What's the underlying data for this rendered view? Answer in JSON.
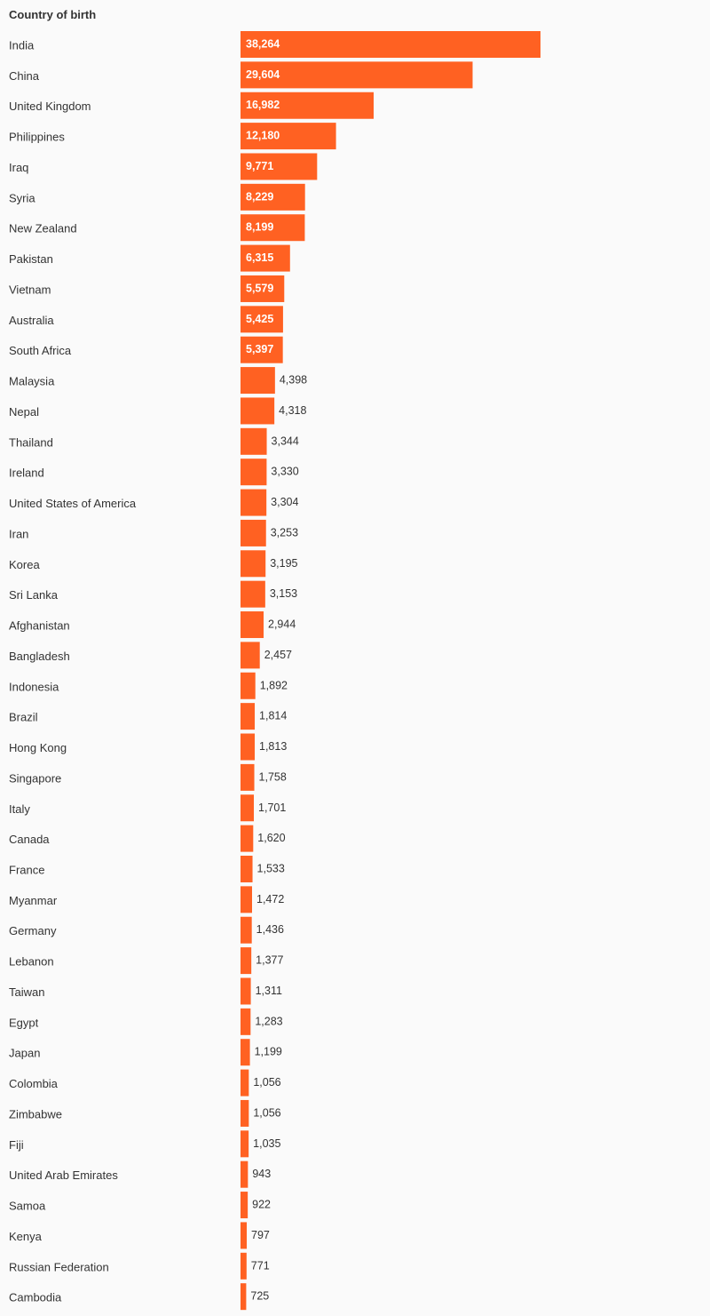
{
  "chart_data": {
    "type": "bar",
    "orientation": "horizontal",
    "title": "Country of birth",
    "xlabel": "",
    "ylabel": "",
    "bar_color": "#ff6122",
    "inside_label_color": "#ffffff",
    "outside_label_color": "#333333",
    "categories": [
      "India",
      "China",
      "United Kingdom",
      "Philippines",
      "Iraq",
      "Syria",
      "New Zealand",
      "Pakistan",
      "Vietnam",
      "Australia",
      "South Africa",
      "Malaysia",
      "Nepal",
      "Thailand",
      "Ireland",
      "United States of America",
      "Iran",
      "Korea",
      "Sri Lanka",
      "Afghanistan",
      "Bangladesh",
      "Indonesia",
      "Brazil",
      "Hong Kong",
      "Singapore",
      "Italy",
      "Canada",
      "France",
      "Myanmar",
      "Germany",
      "Lebanon",
      "Taiwan",
      "Egypt",
      "Japan",
      "Colombia",
      "Zimbabwe",
      "Fiji",
      "United Arab Emirates",
      "Samoa",
      "Kenya",
      "Russian Federation",
      "Cambodia"
    ],
    "values": [
      38264,
      29604,
      16982,
      12180,
      9771,
      8229,
      8199,
      6315,
      5579,
      5425,
      5397,
      4398,
      4318,
      3344,
      3330,
      3304,
      3253,
      3195,
      3153,
      2944,
      2457,
      1892,
      1814,
      1813,
      1758,
      1701,
      1620,
      1533,
      1472,
      1436,
      1377,
      1311,
      1283,
      1199,
      1056,
      1056,
      1035,
      943,
      922,
      797,
      771,
      725
    ],
    "value_labels": [
      "38,264",
      "29,604",
      "16,982",
      "12,180",
      "9,771",
      "8,229",
      "8,199",
      "6,315",
      "5,579",
      "5,425",
      "5,397",
      "4,398",
      "4,318",
      "3,344",
      "3,330",
      "3,304",
      "3,253",
      "3,195",
      "3,153",
      "2,944",
      "2,457",
      "1,892",
      "1,814",
      "1,813",
      "1,758",
      "1,701",
      "1,620",
      "1,533",
      "1,472",
      "1,436",
      "1,377",
      "1,311",
      "1,283",
      "1,199",
      "1,056",
      "1,056",
      "1,035",
      "943",
      "922",
      "797",
      "771",
      "725"
    ],
    "xlim": [
      0,
      38264
    ],
    "grid": false,
    "legend": "none"
  }
}
